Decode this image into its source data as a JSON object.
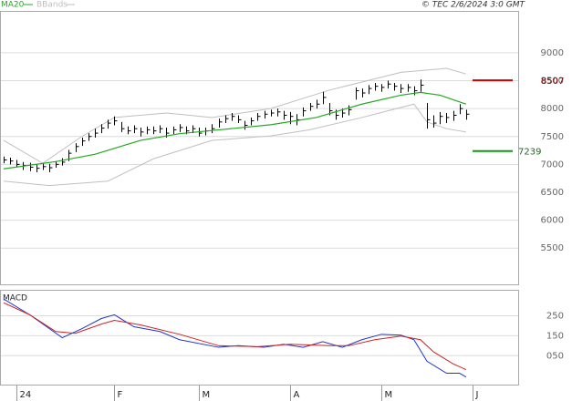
{
  "chart_data": [
    {
      "type": "ohlc",
      "copyright": "© TEC 2/6/2024 3:0 GMT",
      "xlim": [
        0,
        79
      ],
      "ylim": [
        4850,
        9750
      ],
      "yticks": [
        5500,
        6000,
        6500,
        7000,
        7500,
        8000,
        8500,
        9000
      ],
      "grid": true,
      "bar_color": "#000000",
      "high": [
        7140,
        7120,
        7080,
        7040,
        7030,
        7000,
        7020,
        7010,
        7060,
        7110,
        7260,
        7380,
        7480,
        7560,
        7640,
        7720,
        7800,
        7860,
        7760,
        7680,
        7700,
        7660,
        7680,
        7680,
        7700,
        7660,
        7680,
        7720,
        7680,
        7700,
        7660,
        7660,
        7720,
        7820,
        7880,
        7920,
        7880,
        7780,
        7840,
        7920,
        7960,
        7980,
        8000,
        7960,
        7940,
        7900,
        8020,
        8100,
        8160,
        8300,
        8100,
        7980,
        8000,
        8060,
        8380,
        8360,
        8420,
        8460,
        8440,
        8500,
        8460,
        8440,
        8440,
        8400,
        8520,
        8100,
        7880,
        7940,
        7920,
        7960,
        8080,
        7980
      ],
      "low": [
        7020,
        7000,
        6950,
        6900,
        6880,
        6860,
        6900,
        6860,
        6940,
        6980,
        7060,
        7220,
        7330,
        7420,
        7480,
        7560,
        7640,
        7700,
        7580,
        7540,
        7560,
        7500,
        7540,
        7540,
        7560,
        7480,
        7540,
        7580,
        7540,
        7560,
        7500,
        7520,
        7560,
        7660,
        7740,
        7780,
        7740,
        7620,
        7700,
        7780,
        7820,
        7860,
        7860,
        7800,
        7720,
        7700,
        7860,
        7960,
        8000,
        8080,
        7880,
        7800,
        7840,
        7880,
        8160,
        8200,
        8260,
        8320,
        8300,
        8360,
        8320,
        8280,
        8300,
        8240,
        8300,
        7640,
        7660,
        7720,
        7740,
        7780,
        7900,
        7800
      ],
      "close": [
        7080,
        7060,
        7000,
        6980,
        6950,
        6930,
        6960,
        6940,
        7000,
        7040,
        7200,
        7320,
        7420,
        7500,
        7560,
        7650,
        7740,
        7780,
        7640,
        7600,
        7640,
        7580,
        7620,
        7600,
        7640,
        7560,
        7620,
        7660,
        7600,
        7640,
        7560,
        7600,
        7640,
        7760,
        7820,
        7860,
        7800,
        7700,
        7780,
        7860,
        7900,
        7920,
        7940,
        7880,
        7860,
        7800,
        7960,
        8040,
        8080,
        8200,
        7960,
        7880,
        7920,
        7980,
        8320,
        8280,
        8360,
        8400,
        8380,
        8440,
        8400,
        8360,
        8380,
        8320,
        8420,
        7800,
        7740,
        7860,
        7840,
        7880,
        8000,
        7900
      ],
      "series": [
        {
          "name": "MA20",
          "color": "#22aa22",
          "x": [
            0,
            8,
            14,
            21,
            27,
            34,
            41,
            48,
            55,
            61,
            64,
            67,
            71
          ],
          "values": [
            6920,
            7050,
            7180,
            7430,
            7550,
            7630,
            7710,
            7840,
            8080,
            8240,
            8290,
            8240,
            8080
          ]
        }
      ],
      "bands": {
        "name": "BBands",
        "color": "#c0c0c0",
        "upper": {
          "x": [
            0,
            6,
            12,
            17,
            25,
            32,
            41,
            50,
            61,
            68,
            71
          ],
          "values": [
            7430,
            7020,
            7500,
            7840,
            7920,
            7840,
            8000,
            8330,
            8650,
            8720,
            8620
          ]
        },
        "lower": {
          "x": [
            0,
            7,
            16,
            23,
            32,
            41,
            47,
            55,
            63,
            65,
            68,
            71
          ],
          "values": [
            6700,
            6620,
            6700,
            7100,
            7430,
            7510,
            7620,
            7840,
            8080,
            7760,
            7640,
            7580
          ]
        }
      },
      "levels": [
        {
          "value": 8507,
          "color": "#cc0000",
          "text_color": "#8b0000"
        },
        {
          "value": 7239,
          "color": "#119911",
          "text_color": "#226622"
        }
      ]
    },
    {
      "type": "line",
      "title": "MACD",
      "xlim": [
        0,
        79
      ],
      "ylim": [
        -95,
        380
      ],
      "yticks": [
        {
          "value": 50,
          "label": "050"
        },
        150,
        250
      ],
      "grid": true,
      "xticks": [
        {
          "value": 2,
          "label": "24"
        },
        {
          "value": 17,
          "label": "F"
        },
        {
          "value": 30,
          "label": "M"
        },
        {
          "value": 44,
          "label": "A"
        },
        {
          "value": 58,
          "label": "M"
        },
        {
          "value": 72,
          "label": "J"
        }
      ],
      "series": [
        {
          "color": "#2233cc",
          "x": [
            0,
            4,
            9,
            12,
            15,
            17,
            20,
            24,
            27,
            33,
            36,
            40,
            43,
            46,
            49,
            52,
            55,
            58,
            61,
            63,
            65,
            68,
            70,
            71
          ],
          "values": [
            334,
            255,
            140,
            185,
            236,
            255,
            195,
            171,
            130,
            92,
            100,
            92,
            107,
            92,
            120,
            92,
            130,
            157,
            153,
            130,
            22,
            -38,
            -38,
            -57
          ]
        },
        {
          "color": "#cc2222",
          "x": [
            0,
            4,
            8,
            11,
            15,
            17,
            21,
            27,
            33,
            39,
            44,
            50,
            53,
            57,
            61,
            64,
            66,
            69,
            71
          ],
          "values": [
            315,
            255,
            171,
            162,
            208,
            227,
            204,
            157,
            100,
            95,
            107,
            100,
            100,
            130,
            148,
            130,
            69,
            9,
            -20
          ]
        }
      ]
    }
  ]
}
